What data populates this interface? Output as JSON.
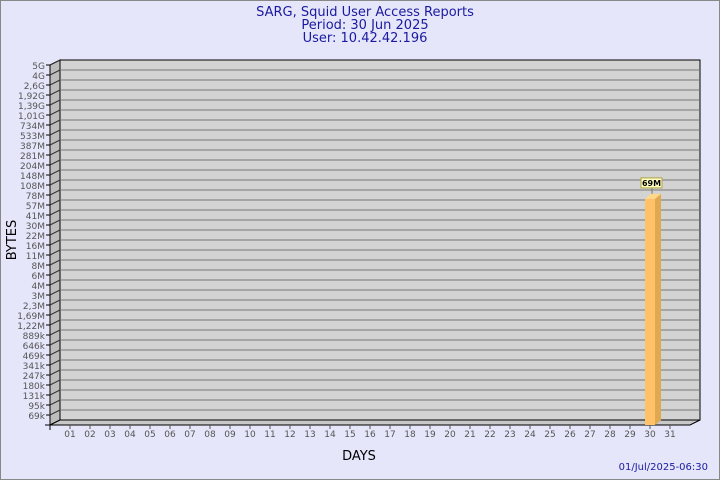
{
  "chart_data": {
    "type": "bar",
    "title": "SARG, Squid User Access Reports",
    "subtitle_period": "Period: 30 Jun 2025",
    "subtitle_user": "User: 10.42.42.196",
    "xlabel": "DAYS",
    "ylabel": "BYTES",
    "y_scale": "log",
    "y_tick_labels": [
      "5G",
      "4G",
      "2,6G",
      "1,92G",
      "1,39G",
      "1,01G",
      "734M",
      "533M",
      "387M",
      "281M",
      "204M",
      "148M",
      "108M",
      "78M",
      "57M",
      "41M",
      "30M",
      "22M",
      "16M",
      "11M",
      "8M",
      "6M",
      "4M",
      "3M",
      "2,3M",
      "1,69M",
      "1,22M",
      "889k",
      "646k",
      "469k",
      "341k",
      "247k",
      "180k",
      "131k",
      "95k",
      "69k"
    ],
    "categories": [
      "01",
      "02",
      "03",
      "04",
      "05",
      "06",
      "07",
      "08",
      "09",
      "10",
      "11",
      "12",
      "13",
      "14",
      "15",
      "16",
      "17",
      "18",
      "19",
      "20",
      "21",
      "22",
      "23",
      "24",
      "25",
      "26",
      "27",
      "28",
      "29",
      "30",
      "31"
    ],
    "bars": [
      {
        "category": "30",
        "value": 69000000,
        "label": "69M"
      }
    ],
    "grid": true,
    "colors": {
      "bar_front": "#ffc266",
      "bar_side": "#e0a850",
      "wall": "#d3d3d3",
      "background": "#e6e6fa",
      "title": "#1a1aa0",
      "label_box": "#ffffc0"
    }
  },
  "footer": {
    "timestamp": "01/Jul/2025-06:30"
  }
}
